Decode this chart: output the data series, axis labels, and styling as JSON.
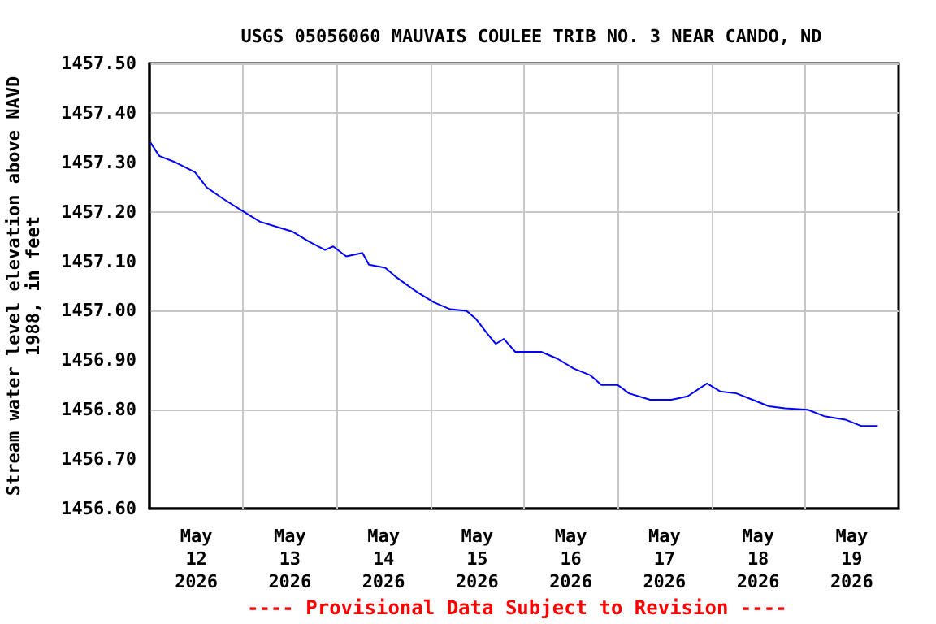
{
  "chart_data": {
    "type": "line",
    "title": "USGS 05056060 MAUVAIS COULEE TRIB NO. 3 NEAR CANDO, ND",
    "ylabel": "Stream water level elevation above NAVD 1988, in feet",
    "annotations": [
      "---- Provisional Data Subject to Revision ----"
    ],
    "x": [
      "2026-05-12T00:15",
      "2026-05-12T02:30",
      "2026-05-12T06:40",
      "2026-05-12T11:40",
      "2026-05-12T14:35",
      "2026-05-12T18:45",
      "2026-05-13T00:10",
      "2026-05-13T04:20",
      "2026-05-13T08:30",
      "2026-05-13T12:40",
      "2026-05-13T16:50",
      "2026-05-13T21:00",
      "2026-05-13T23:05",
      "2026-05-14T02:25",
      "2026-05-14T06:35",
      "2026-05-14T08:15",
      "2026-05-14T12:25",
      "2026-05-14T14:55",
      "2026-05-14T17:50",
      "2026-05-14T20:45",
      "2026-05-15T00:55",
      "2026-05-15T05:05",
      "2026-05-15T09:15",
      "2026-05-15T11:45",
      "2026-05-15T14:40",
      "2026-05-15T16:45",
      "2026-05-15T18:50",
      "2026-05-15T21:45",
      "2026-05-16T01:55",
      "2026-05-16T04:25",
      "2026-05-16T08:35",
      "2026-05-16T12:45",
      "2026-05-16T16:55",
      "2026-05-16T19:50",
      "2026-05-17T00:00",
      "2026-05-17T02:55",
      "2026-05-17T08:20",
      "2026-05-17T13:45",
      "2026-05-17T17:55",
      "2026-05-17T22:55",
      "2026-05-18T02:15",
      "2026-05-18T06:25",
      "2026-05-18T10:35",
      "2026-05-18T14:45",
      "2026-05-18T18:55",
      "2026-05-19T00:45",
      "2026-05-19T04:55",
      "2026-05-19T10:20",
      "2026-05-19T14:30",
      "2026-05-19T18:40"
    ],
    "series": [
      {
        "color": "#0000ff",
        "values": [
          1457.34,
          1457.313,
          1457.3,
          1457.28,
          1457.25,
          1457.227,
          1457.2,
          1457.18,
          1457.17,
          1457.16,
          1457.14,
          1457.123,
          1457.13,
          1457.11,
          1457.117,
          1457.093,
          1457.087,
          1457.07,
          1457.053,
          1457.037,
          1457.017,
          1457.003,
          1457.0,
          1456.983,
          1456.953,
          1456.933,
          1456.943,
          1456.917,
          1456.917,
          1456.917,
          1456.903,
          1456.883,
          1456.87,
          1456.85,
          1456.85,
          1456.833,
          1456.82,
          1456.82,
          1456.827,
          1456.853,
          1456.837,
          1456.833,
          1456.82,
          1456.807,
          1456.803,
          1456.8,
          1456.787,
          1456.78,
          1456.767,
          1456.767
        ]
      }
    ],
    "xlim": [
      "2026-05-12T00:00",
      "2026-05-20T00:00"
    ],
    "xticks": [
      {
        "value": "2026-05-12T12:00",
        "label": "May 12 2026"
      },
      {
        "value": "2026-05-13T00:00",
        "label": null
      },
      {
        "value": "2026-05-13T12:00",
        "label": "May 13 2026"
      },
      {
        "value": "2026-05-14T00:00",
        "label": null
      },
      {
        "value": "2026-05-14T12:00",
        "label": "May 14 2026"
      },
      {
        "value": "2026-05-15T00:00",
        "label": null
      },
      {
        "value": "2026-05-15T12:00",
        "label": "May 15 2026"
      },
      {
        "value": "2026-05-16T00:00",
        "label": null
      },
      {
        "value": "2026-05-16T12:00",
        "label": "May 16 2026"
      },
      {
        "value": "2026-05-17T00:00",
        "label": null
      },
      {
        "value": "2026-05-17T12:00",
        "label": "May 17 2026"
      },
      {
        "value": "2026-05-18T00:00",
        "label": null
      },
      {
        "value": "2026-05-18T12:00",
        "label": "May 18 2026"
      },
      {
        "value": "2026-05-19T00:00",
        "label": null
      },
      {
        "value": "2026-05-19T12:00",
        "label": "May 19 2026"
      }
    ],
    "ylim": [
      1456.6,
      1457.5
    ],
    "yticks": [
      {
        "value": 1456.6,
        "label": "1456.60"
      },
      {
        "value": 1456.7,
        "label": "1456.70"
      },
      {
        "value": 1456.8,
        "label": "1456.80"
      },
      {
        "value": 1456.9,
        "label": "1456.90"
      },
      {
        "value": 1457.0,
        "label": "1457.00"
      },
      {
        "value": 1457.1,
        "label": "1457.10"
      },
      {
        "value": 1457.2,
        "label": "1457.20"
      },
      {
        "value": 1457.3,
        "label": "1457.30"
      },
      {
        "value": 1457.4,
        "label": "1457.40"
      },
      {
        "value": 1457.5,
        "label": "1457.50"
      }
    ],
    "grid": true,
    "marker": "none",
    "line_style": "solid"
  }
}
